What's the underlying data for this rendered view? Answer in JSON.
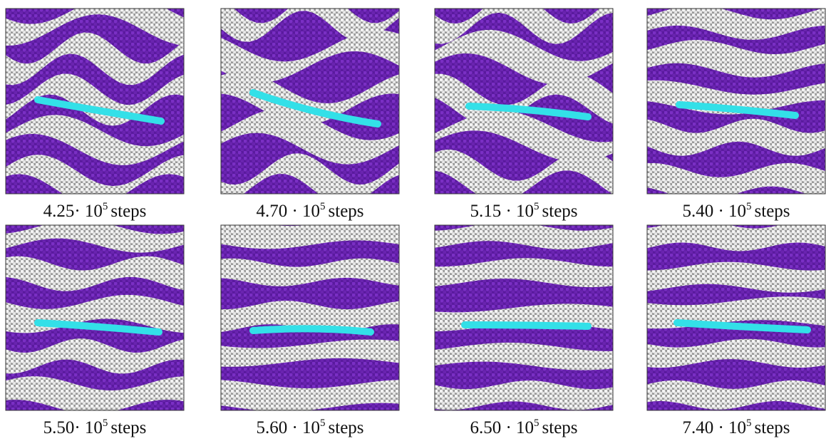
{
  "panels": [
    {
      "caption": {
        "lead": "4.25· 10",
        "exponent": "5",
        "unit": "steps"
      }
    },
    {
      "caption": {
        "lead": "4.70 · 10",
        "exponent": "5",
        "unit": "steps"
      }
    },
    {
      "caption": {
        "lead": "5.15 · 10",
        "exponent": "5",
        "unit": "steps"
      }
    },
    {
      "caption": {
        "lead": "5.40 · 10",
        "exponent": "5",
        "unit": "steps"
      }
    },
    {
      "caption": {
        "lead": "5.50· 10",
        "exponent": "5",
        "unit": "steps"
      }
    },
    {
      "caption": {
        "lead": "5.60 · 10",
        "exponent": "5",
        "unit": "steps"
      }
    },
    {
      "caption": {
        "lead": "6.50 · 10",
        "exponent": "5",
        "unit": "steps"
      }
    },
    {
      "caption": {
        "lead": "7.40 · 10",
        "exponent": "5",
        "unit": "steps"
      }
    }
  ]
}
